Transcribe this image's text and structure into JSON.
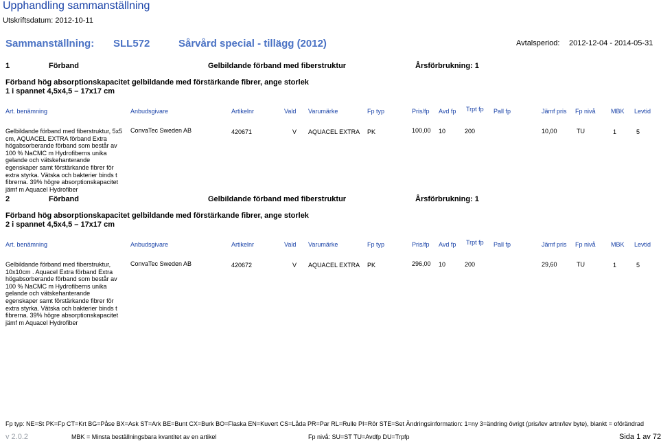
{
  "header": {
    "title": "Upphandling sammanställning",
    "print_date": "Utskriftsdatum: 2012-10-11",
    "summary_label": "Sammanställning:",
    "summary_code": "SLL572",
    "summary_name": "Sårvård special - tillägg (2012)",
    "period_label": "Avtalsperiod:",
    "period_value": "2012-12-04 - 2014-05-31"
  },
  "columns": {
    "art": "Art. benämning",
    "supplier": "Anbudsgivare",
    "artnr": "Artikelnr",
    "chosen": "Vald",
    "brand": "Varumärke",
    "fptype": "Fp typ",
    "price": "Pris/fp",
    "avdfp": "Avd fp",
    "trptfp": "Trpt fp",
    "pallfp": "Pall fp",
    "cmp": "Jämf pris",
    "fplevel": "Fp nivå",
    "mbk": "MBK",
    "lev": "Levtid"
  },
  "sections": [
    {
      "num": "1",
      "category": "Förband",
      "subcategory": "Gelbildande förband med fiberstruktur",
      "annual": "Årsförbrukning: 1",
      "desc1": "Förband hög absorptionskapacitet gelbildande med förstärkande fibrer, ange storlek",
      "desc2": "1 i spannet 4,5x4,5 – 17x17 cm",
      "row": {
        "art": "Gelbildande förband med fiberstruktur, 5x5 cm, AQUACEL EXTRA förband Extra högabsorberande förband som består av 100 % NaCMC m Hydrofiberns unika gelande och vätskehanterande egenskaper samt förstärkande fibrer för extra styrka. Vätska och bakterier binds t fibrerna. 39% högre absorptionskapacitet jämf m Aquacel Hydrofiber",
        "supplier": "ConvaTec Sweden AB",
        "artnr": "420671",
        "chosen": "V",
        "brand": "AQUACEL EXTRA",
        "fptype": "PK",
        "price": "100,00",
        "avdfp": "10",
        "trptfp": "200",
        "pallfp": "",
        "cmp": "10,00",
        "fplevel": "TU",
        "mbk": "1",
        "lev": "5"
      }
    },
    {
      "num": "2",
      "category": "Förband",
      "subcategory": "Gelbildande förband med fiberstruktur",
      "annual": "Årsförbrukning: 1",
      "desc1": "Förband hög absorptionskapacitet gelbildande med förstärkande fibrer, ange storlek",
      "desc2": "2 i spannet 4,5x4,5 – 17x17 cm",
      "row": {
        "art": "Gelbildande förband med fiberstruktur, 10x10cm . Aquacel Extra förband Extra högabsorberande förband som består av 100 % NaCMC m Hydrofiberns unika gelande och vätskehanterande egenskaper samt förstärkande fibrer för extra styrka. Vätska och bakterier binds t fibrerna. 39% högre absorptionskapacitet jämf m Aquacel Hydrofiber",
        "supplier": "ConvaTec Sweden AB",
        "artnr": "420672",
        "chosen": "V",
        "brand": "AQUACEL EXTRA",
        "fptype": "PK",
        "price": "296,00",
        "avdfp": "10",
        "trptfp": "200",
        "pallfp": "",
        "cmp": "29,60",
        "fplevel": "TU",
        "mbk": "1",
        "lev": "5"
      }
    }
  ],
  "footer": {
    "legend": "Fp typ: NE=St PK=Fp CT=Krt BG=Påse BX=Ask ST=Ark BE=Bunt CX=Burk BO=Flaska EN=Kuvert CS=Låda PR=Par RL=Rulle PI=Rör STE=Set Ändringsinformation: 1=ny 3=ändring övrigt (pris/lev artnr/lev byte), blankt = oförändrad",
    "version": "v 2.0.2",
    "mbk_note": "MBK = Minsta beställningsbara kvantitet av en artikel",
    "fp_note": "Fp nivå: SU=ST TU=Avdfp DU=Trpfp",
    "page": "Sida 1 av 72"
  }
}
